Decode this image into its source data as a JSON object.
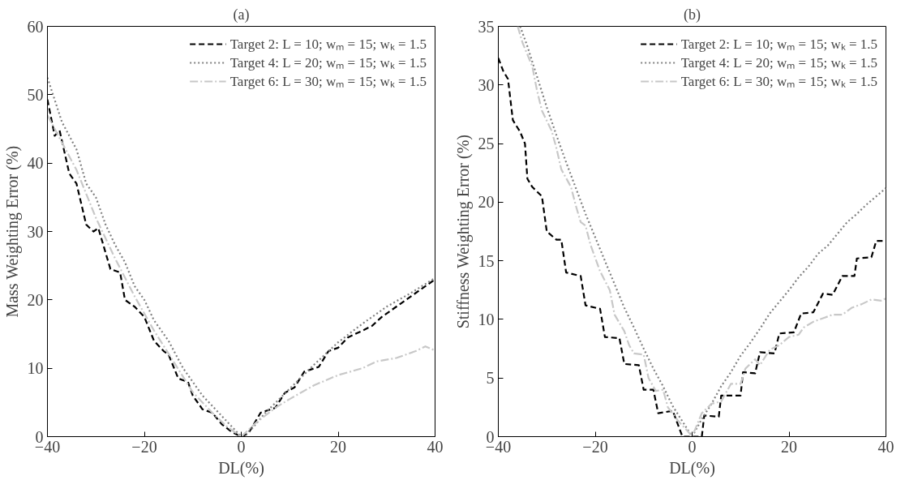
{
  "chart_data": [
    {
      "type": "line",
      "title": "(a)",
      "xlabel": "DL(%)",
      "ylabel": "Mass Weighting Error (%)",
      "xlim": [
        -40,
        40
      ],
      "ylim": [
        0,
        60
      ],
      "xticks": [
        -40,
        -20,
        0,
        20,
        40
      ],
      "yticks": [
        0,
        10,
        20,
        30,
        40,
        50,
        60
      ],
      "grid": false,
      "legend": "top right",
      "marker": "none",
      "series": [
        {
          "name": "Target 2: L = 10; wₘ = 15; wₖ = 1.5",
          "color": "#000000",
          "line_style": "dashed",
          "x": [
            -40,
            -38.5,
            -37.5,
            -35.5,
            -34,
            -32,
            -30.5,
            -29.5,
            -27,
            -25,
            -24,
            -22,
            -20,
            -18,
            -16,
            -15,
            -13,
            -11,
            -10,
            -8,
            -6,
            -4,
            -2,
            0,
            1.5,
            4,
            7,
            9,
            11,
            13,
            16,
            18,
            20,
            22,
            25,
            27,
            29,
            31,
            33,
            35,
            37,
            40
          ],
          "values": [
            49.3,
            44,
            44.8,
            38.5,
            37,
            31,
            30,
            30.5,
            24.5,
            24,
            20,
            19,
            17.5,
            14,
            12.5,
            12,
            8.5,
            8,
            6,
            4,
            3.5,
            1.8,
            0.7,
            0,
            0.5,
            3.5,
            4.2,
            6.4,
            7.2,
            9.5,
            10.2,
            12.5,
            13,
            14.5,
            15.5,
            16.2,
            17.5,
            18.5,
            19.5,
            20.5,
            21.5,
            23
          ]
        },
        {
          "name": "Target 4: L = 20; wₘ = 15; wₖ = 1.5",
          "color": "#808080",
          "line_style": "dotted",
          "x": [
            -40,
            -37,
            -34,
            -32,
            -30,
            -28,
            -26,
            -24,
            -22,
            -20,
            -18,
            -15,
            -12,
            -10,
            -8,
            -6,
            -4,
            -2,
            0,
            2,
            5,
            10,
            15,
            20,
            25,
            30,
            35,
            40
          ],
          "values": [
            52.5,
            46,
            42,
            37,
            35,
            31,
            28,
            25.5,
            22,
            20,
            17,
            14,
            10,
            8,
            6,
            4.5,
            3,
            1.5,
            0,
            1,
            3.5,
            7,
            10.5,
            13.8,
            16.5,
            19,
            21,
            23.2
          ]
        },
        {
          "name": "Target 6: L = 30; wₘ = 15; wₖ = 1.5",
          "color": "#c8c8c8",
          "line_style": "dashdot",
          "x": [
            -40,
            -37,
            -34,
            -30,
            -26,
            -22,
            -18,
            -14,
            -10,
            -6,
            -3,
            0,
            3,
            7,
            10,
            15,
            20,
            25,
            28,
            32,
            36,
            38,
            40
          ],
          "values": [
            47,
            43,
            39,
            32,
            26,
            20.5,
            15.5,
            11,
            6.5,
            3.5,
            1.5,
            0,
            2,
            4.2,
            5.5,
            7.5,
            9,
            10,
            11,
            11.5,
            12.5,
            13.2,
            12.6
          ]
        }
      ]
    },
    {
      "type": "line",
      "title": "(b)",
      "xlabel": "DL(%)",
      "ylabel": "Stiffness Weighting Error (%)",
      "xlim": [
        -40,
        40
      ],
      "ylim": [
        0,
        35
      ],
      "xticks": [
        -40,
        -20,
        0,
        20,
        40
      ],
      "yticks": [
        0,
        5,
        10,
        15,
        20,
        25,
        30,
        35
      ],
      "grid": false,
      "legend": "top right",
      "marker": "none",
      "series": [
        {
          "name": "Target 2: L = 10; wₘ = 15; wₖ = 1.5",
          "color": "#000000",
          "line_style": "dashed",
          "x": [
            -40,
            -39,
            -38,
            -37,
            -35.5,
            -34.5,
            -34,
            -33,
            -31,
            -30,
            -28,
            -27,
            -26,
            -23,
            -22,
            -19,
            -18,
            -15,
            -14,
            -11,
            -10,
            -8,
            -7,
            -4,
            -2,
            2,
            2.5,
            5.5,
            6,
            10,
            10.5,
            13,
            14,
            17,
            18,
            21,
            22.5,
            25,
            27,
            29,
            31,
            33.5,
            34,
            37,
            38,
            40
          ],
          "values": [
            32.3,
            31.2,
            30.5,
            27,
            26,
            25,
            22,
            21.3,
            20.5,
            17.5,
            16.8,
            16.8,
            14,
            13.7,
            11.2,
            10.9,
            8.5,
            8.4,
            6.2,
            6.1,
            4,
            4,
            2,
            2.2,
            0,
            0,
            1.8,
            1.7,
            3.5,
            3.5,
            5.5,
            5.4,
            7.2,
            7.1,
            8.8,
            8.9,
            10.5,
            10.6,
            12.2,
            12.1,
            13.7,
            13.7,
            15.2,
            15.3,
            16.7,
            16.7
          ]
        },
        {
          "name": "Target 4: L = 20; wₘ = 15; wₖ = 1.5",
          "color": "#808080",
          "line_style": "dotted",
          "x": [
            -35.5,
            -34,
            -32,
            -30,
            -28,
            -26,
            -24,
            -22,
            -20,
            -18,
            -16,
            -14,
            -12,
            -10,
            -8,
            -6,
            -4,
            -2,
            0,
            2,
            4,
            6,
            8,
            10,
            12,
            14,
            16,
            18,
            20,
            22,
            24,
            26,
            28,
            30,
            32,
            34,
            36,
            38,
            40
          ],
          "values": [
            35,
            33.3,
            30.7,
            28.1,
            25.7,
            23.4,
            21.2,
            19,
            17,
            15,
            13,
            11,
            9.3,
            7.5,
            5.8,
            4.3,
            2.6,
            1.3,
            0,
            1.5,
            2.8,
            4.3,
            5.5,
            6.9,
            8,
            9.2,
            10.5,
            11.5,
            12.5,
            13.6,
            14.5,
            15.6,
            16.3,
            17.3,
            18.3,
            19,
            19.8,
            20.5,
            21.2
          ]
        },
        {
          "name": "Target 6: L = 30; wₘ = 15; wₖ = 1.5",
          "color": "#c8c8c8",
          "line_style": "dashdot",
          "x": [
            -36,
            -35,
            -33,
            -32,
            -31,
            -29,
            -28,
            -27,
            -25,
            -24,
            -23,
            -22,
            -21,
            -19,
            -17,
            -16,
            -14,
            -13,
            -12,
            -10,
            -9,
            -7.5,
            -6,
            -5,
            -3,
            -1,
            0,
            2,
            4,
            6,
            8,
            10,
            11,
            13,
            14,
            16,
            18,
            20,
            22,
            23,
            25,
            27,
            29,
            31,
            33,
            35,
            37,
            39,
            40
          ],
          "values": [
            35,
            33.6,
            31.6,
            29.5,
            27.8,
            26.1,
            24.6,
            22.8,
            21.3,
            19.7,
            18.3,
            18,
            16.4,
            14.1,
            12.5,
            10.4,
            9,
            7.8,
            7.1,
            7,
            5,
            3.9,
            4,
            2.5,
            1.4,
            0.5,
            0,
            2,
            2.8,
            3,
            4.5,
            4.5,
            5.8,
            6.6,
            6.1,
            7.4,
            7.8,
            8.5,
            8.7,
            9.3,
            9.8,
            10.1,
            10.4,
            10.4,
            11,
            11.3,
            11.7,
            11.6,
            11.8
          ]
        }
      ]
    }
  ]
}
